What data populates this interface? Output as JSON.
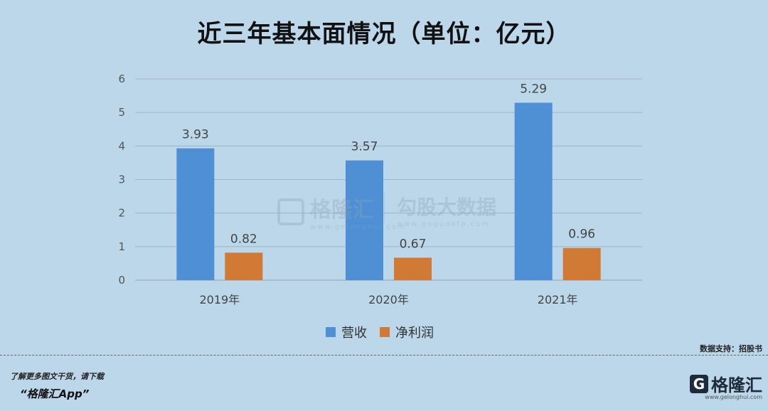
{
  "chart_data": {
    "type": "bar",
    "title": "近三年基本面情况（单位：亿元）",
    "categories": [
      "2019年",
      "2020年",
      "2021年"
    ],
    "series": [
      {
        "name": "营收",
        "values": [
          3.93,
          3.57,
          5.29
        ],
        "color": "#4f8fd4"
      },
      {
        "name": "净利润",
        "values": [
          0.82,
          0.67,
          0.96
        ],
        "color": "#d07a36"
      }
    ],
    "ylim": [
      0,
      6
    ],
    "yticks": [
      0,
      1,
      2,
      3,
      4,
      5,
      6
    ],
    "grid": true,
    "legend": "bottom"
  },
  "watermark": {
    "left": "格隆汇",
    "left_url": "www.gelonghui.com",
    "right": "勾股大数据",
    "right_url": "www.gogudata.com"
  },
  "source_text": "数据支持：招股书",
  "footer": {
    "line1": "了解更多图文干货，请下载",
    "line2": "“格隆汇App”"
  },
  "logo": {
    "mark": "G",
    "text": "格隆汇",
    "sub": "www.gelonghui.com"
  }
}
